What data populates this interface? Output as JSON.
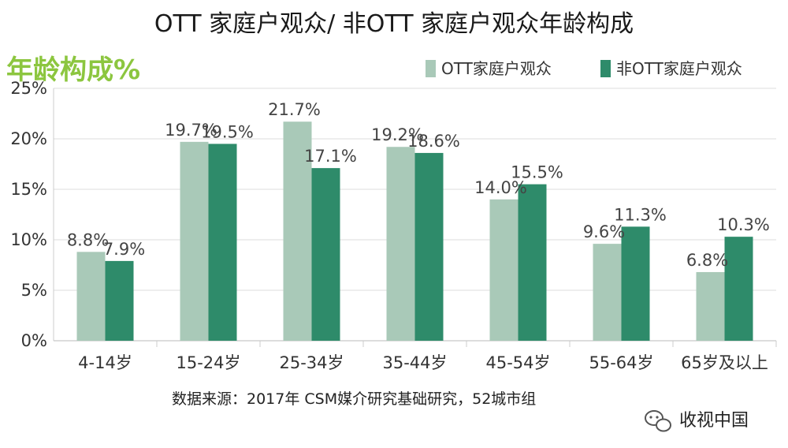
{
  "chart_data": {
    "type": "bar",
    "title": "OTT 家庭户观众/ 非OTT 家庭户观众年龄构成",
    "ylabel": "年龄构成%",
    "ylim": [
      0,
      25
    ],
    "yticks": [
      "0%",
      "5%",
      "10%",
      "15%",
      "20%",
      "25%"
    ],
    "yticks_values": [
      0,
      5,
      10,
      15,
      20,
      25
    ],
    "categories": [
      "4-14岁",
      "15-24岁",
      "25-34岁",
      "35-44岁",
      "45-54岁",
      "55-64岁",
      "65岁及以上"
    ],
    "series": [
      {
        "name": "OTT家庭户观众",
        "values": [
          8.8,
          19.7,
          21.7,
          19.2,
          14.0,
          9.6,
          6.8
        ],
        "labels": [
          "8.8%",
          "19.7%",
          "21.7%",
          "19.2%",
          "14.0%",
          "9.6%",
          "6.8%"
        ],
        "color": "#a9c9b8"
      },
      {
        "name": "非OTT家庭户观众",
        "values": [
          7.9,
          19.5,
          17.1,
          18.6,
          15.5,
          11.3,
          10.3
        ],
        "labels": [
          "7.9%",
          "19.5%",
          "17.1%",
          "18.6%",
          "15.5%",
          "11.3%",
          "10.3%"
        ],
        "color": "#2e8b6a"
      }
    ],
    "legend_position": "top-right",
    "grid": true,
    "source": "数据来源：2017年 CSM媒介研究基础研究，52城市组"
  },
  "watermark": {
    "text": "收视中国",
    "icon": "wechat-icon"
  }
}
